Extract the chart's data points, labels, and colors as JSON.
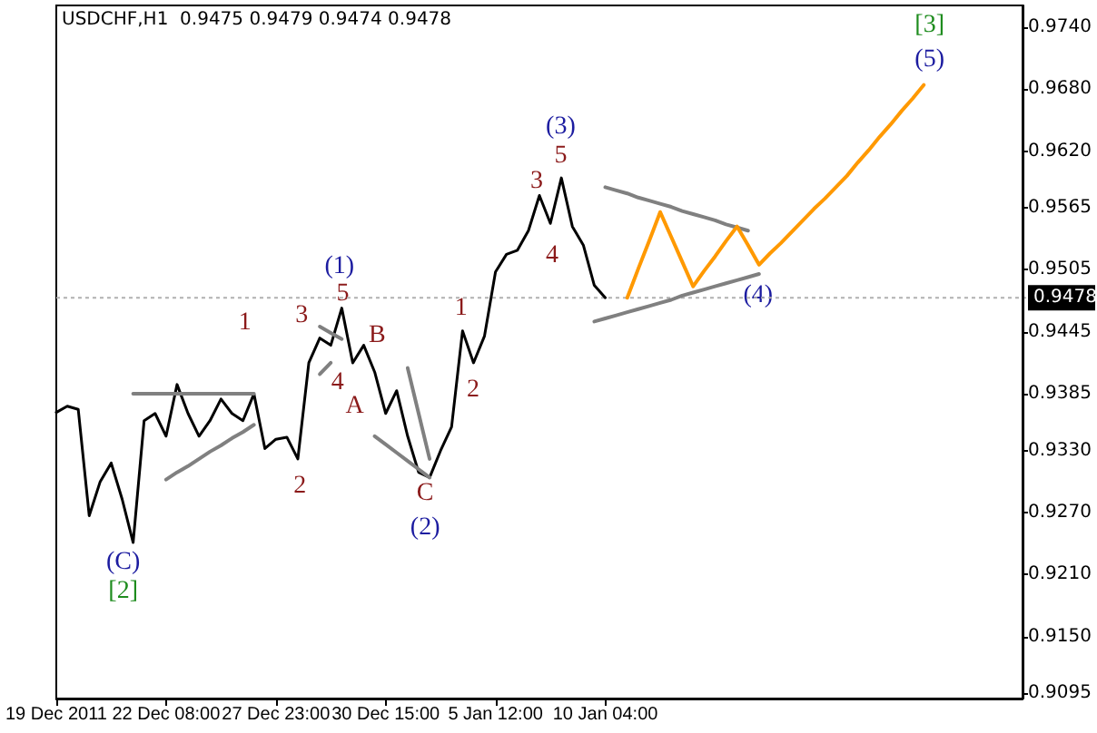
{
  "chart_data": {
    "type": "line",
    "title": "USDCHF,H1  0.9475 0.9479 0.9474 0.9478",
    "marker": "none",
    "grid": false,
    "categories": [
      "19 Dec 2011",
      null,
      null,
      null,
      null,
      null,
      null,
      null,
      null,
      null,
      "22 Dec 08:00",
      null,
      null,
      null,
      null,
      null,
      null,
      null,
      null,
      null,
      "27 Dec 23:00",
      null,
      null,
      null,
      null,
      null,
      null,
      null,
      null,
      null,
      "30 Dec 15:00",
      null,
      null,
      null,
      null,
      null,
      null,
      null,
      null,
      null,
      "5 Jan 12:00",
      null,
      null,
      null,
      null,
      null,
      null,
      null,
      null,
      null,
      "10 Jan 04:00",
      null,
      null,
      null,
      null,
      null,
      null,
      null,
      null,
      null,
      null,
      null,
      null,
      null,
      null,
      null,
      null,
      null,
      null,
      null,
      null,
      null,
      null,
      null,
      null,
      null,
      null,
      null,
      null,
      null,
      null,
      null,
      null,
      null,
      null,
      null,
      null,
      null,
      null
    ],
    "ylim": [
      0.909,
      0.9761
    ],
    "yticks": [
      {
        "value": 0.9095,
        "label": "0.9095"
      },
      {
        "value": 0.915,
        "label": "0.9150"
      },
      {
        "value": 0.921,
        "label": "0.9210"
      },
      {
        "value": 0.927,
        "label": "0.9270"
      },
      {
        "value": 0.933,
        "label": "0.9330"
      },
      {
        "value": 0.9385,
        "label": "0.9385"
      },
      {
        "value": 0.9445,
        "label": "0.9445"
      },
      {
        "value": 0.9505,
        "label": "0.9505"
      },
      {
        "value": 0.9565,
        "label": "0.9565"
      },
      {
        "value": 0.962,
        "label": "0.9620"
      },
      {
        "value": 0.968,
        "label": "0.9680"
      },
      {
        "value": 0.974,
        "label": "0.9740"
      }
    ],
    "ref_lines": [
      {
        "axis": "y",
        "value": 0.9478,
        "label": "0.9478"
      }
    ],
    "series": [
      {
        "color": "#000000",
        "values": [
          0.9367,
          0.9373,
          0.937,
          0.9267,
          0.93,
          0.9318,
          0.9283,
          0.9241,
          0.9359,
          0.9366,
          0.9344,
          0.9394,
          0.9366,
          0.9344,
          0.9359,
          0.938,
          0.9366,
          0.9359,
          0.9385,
          0.9332,
          0.9341,
          0.9343,
          0.9322,
          0.9415,
          0.9439,
          0.9432,
          0.9468,
          0.9415,
          0.9432,
          0.9406,
          0.9366,
          0.9388,
          0.9344,
          0.9309,
          0.9304,
          0.933,
          0.9353,
          0.9446,
          0.9415,
          0.9441,
          0.9503,
          0.952,
          0.9524,
          0.9543,
          0.9577,
          0.955,
          0.9594,
          0.9547,
          0.9529,
          0.949,
          0.9478,
          null,
          null,
          null,
          null,
          null,
          null,
          null,
          null,
          null,
          null,
          null,
          null,
          null,
          null,
          null,
          null,
          null,
          null,
          null,
          null,
          null,
          null,
          null,
          null,
          null,
          null,
          null,
          null,
          null,
          null,
          null,
          null,
          null,
          null,
          null,
          null,
          null,
          null
        ]
      },
      {
        "color": "#808080",
        "values": [
          null,
          null,
          null,
          null,
          null,
          null,
          null,
          0.9385,
          0.9385,
          0.9385,
          0.9385,
          0.9385,
          0.9385,
          0.9385,
          0.9385,
          0.9385,
          0.9385,
          0.9385,
          0.9385,
          null,
          null,
          null,
          null,
          null,
          null,
          null,
          null,
          null,
          null,
          null,
          null,
          null,
          null,
          null,
          null,
          null,
          null,
          null,
          null,
          null,
          null,
          null,
          null,
          null,
          null,
          null,
          null,
          null,
          null,
          null,
          null,
          null,
          null,
          null,
          null,
          null,
          null,
          null,
          null,
          null,
          null,
          null,
          null,
          null,
          null,
          null,
          null,
          null,
          null,
          null,
          null,
          null,
          null,
          null,
          null,
          null,
          null,
          null,
          null,
          null,
          null,
          null,
          null,
          null,
          null,
          null,
          null,
          null,
          null
        ]
      },
      {
        "color": "#808080",
        "values": [
          null,
          null,
          null,
          null,
          null,
          null,
          null,
          null,
          null,
          null,
          0.9302,
          0.9309,
          0.9315,
          0.9322,
          0.9329,
          0.9335,
          0.9342,
          0.9348,
          0.9355,
          null,
          null,
          null,
          null,
          null,
          null,
          null,
          null,
          null,
          null,
          null,
          null,
          null,
          null,
          null,
          null,
          null,
          null,
          null,
          null,
          null,
          null,
          null,
          null,
          null,
          null,
          null,
          null,
          null,
          null,
          null,
          null,
          null,
          null,
          null,
          null,
          null,
          null,
          null,
          null,
          null,
          null,
          null,
          null,
          null,
          null,
          null,
          null,
          null,
          null,
          null,
          null,
          null,
          null,
          null,
          null,
          null,
          null,
          null,
          null,
          null,
          null,
          null,
          null,
          null,
          null,
          null,
          null,
          null,
          null
        ]
      },
      {
        "color": "#7f7f7f",
        "values": [
          null,
          null,
          null,
          null,
          null,
          null,
          null,
          null,
          null,
          null,
          null,
          null,
          null,
          null,
          null,
          null,
          null,
          null,
          null,
          null,
          null,
          null,
          null,
          null,
          0.945,
          0.9444,
          0.9438,
          null,
          null,
          null,
          null,
          null,
          null,
          null,
          null,
          null,
          null,
          null,
          null,
          null,
          null,
          null,
          null,
          null,
          null,
          null,
          null,
          null,
          null,
          null,
          null,
          null,
          null,
          null,
          null,
          null,
          null,
          null,
          null,
          null,
          null,
          null,
          null,
          null,
          null,
          null,
          null,
          null,
          null,
          null,
          null,
          null,
          null,
          null,
          null,
          null,
          null,
          null,
          null,
          null,
          null,
          null,
          null,
          null,
          null,
          null,
          null,
          null,
          null
        ]
      },
      {
        "color": "#808080",
        "values": [
          null,
          null,
          null,
          null,
          null,
          null,
          null,
          null,
          null,
          null,
          null,
          null,
          null,
          null,
          null,
          null,
          null,
          null,
          null,
          null,
          null,
          null,
          null,
          null,
          0.9404,
          0.9415,
          null,
          null,
          null,
          null,
          null,
          null,
          null,
          null,
          null,
          null,
          null,
          null,
          null,
          null,
          null,
          null,
          null,
          null,
          null,
          null,
          null,
          null,
          null,
          null,
          null,
          null,
          null,
          null,
          null,
          null,
          null,
          null,
          null,
          null,
          null,
          null,
          null,
          null,
          null,
          null,
          null,
          null,
          null,
          null,
          null,
          null,
          null,
          null,
          null,
          null,
          null,
          null,
          null,
          null,
          null,
          null,
          null,
          null,
          null,
          null,
          null,
          null,
          null
        ]
      },
      {
        "color": "#808080",
        "values": [
          null,
          null,
          null,
          null,
          null,
          null,
          null,
          null,
          null,
          null,
          null,
          null,
          null,
          null,
          null,
          null,
          null,
          null,
          null,
          null,
          null,
          null,
          null,
          null,
          null,
          null,
          null,
          null,
          null,
          0.9344,
          0.9336,
          0.9328,
          0.932,
          0.9312,
          0.9304,
          null,
          null,
          null,
          null,
          null,
          null,
          null,
          null,
          null,
          null,
          null,
          null,
          null,
          null,
          null,
          null,
          null,
          null,
          null,
          null,
          null,
          null,
          null,
          null,
          null,
          null,
          null,
          null,
          null,
          null,
          null,
          null,
          null,
          null,
          null,
          null,
          null,
          null,
          null,
          null,
          null,
          null,
          null,
          null,
          null,
          null,
          null,
          null,
          null,
          null,
          null,
          null,
          null,
          null
        ]
      },
      {
        "color": "#808080",
        "values": [
          null,
          null,
          null,
          null,
          null,
          null,
          null,
          null,
          null,
          null,
          null,
          null,
          null,
          null,
          null,
          null,
          null,
          null,
          null,
          null,
          null,
          null,
          null,
          null,
          null,
          null,
          null,
          null,
          null,
          null,
          null,
          null,
          0.941,
          0.9366,
          0.9322,
          null,
          null,
          null,
          null,
          null,
          null,
          null,
          null,
          null,
          null,
          null,
          null,
          null,
          null,
          null,
          null,
          null,
          null,
          null,
          null,
          null,
          null,
          null,
          null,
          null,
          null,
          null,
          null,
          null,
          null,
          null,
          null,
          null,
          null,
          null,
          null,
          null,
          null,
          null,
          null,
          null,
          null,
          null,
          null,
          null,
          null,
          null,
          null,
          null,
          null,
          null,
          null,
          null,
          null
        ]
      },
      {
        "color": "#808080",
        "values": [
          null,
          null,
          null,
          null,
          null,
          null,
          null,
          null,
          null,
          null,
          null,
          null,
          null,
          null,
          null,
          null,
          null,
          null,
          null,
          null,
          null,
          null,
          null,
          null,
          null,
          null,
          null,
          null,
          null,
          null,
          null,
          null,
          null,
          null,
          null,
          null,
          null,
          null,
          null,
          null,
          null,
          null,
          null,
          null,
          null,
          null,
          null,
          null,
          null,
          0.9455,
          0.9458,
          0.9461,
          0.9464,
          0.9467,
          0.947,
          0.9473,
          0.9476,
          0.948,
          0.9483,
          0.9486,
          0.9489,
          0.9492,
          0.9495,
          0.9498,
          0.9501,
          null,
          null,
          null,
          null,
          null,
          null,
          null,
          null,
          null,
          null,
          null,
          null,
          null,
          null,
          null,
          null,
          null,
          null,
          null,
          null,
          null,
          null,
          null,
          null
        ]
      },
      {
        "color": "#808080",
        "values": [
          null,
          null,
          null,
          null,
          null,
          null,
          null,
          null,
          null,
          null,
          null,
          null,
          null,
          null,
          null,
          null,
          null,
          null,
          null,
          null,
          null,
          null,
          null,
          null,
          null,
          null,
          null,
          null,
          null,
          null,
          null,
          null,
          null,
          null,
          null,
          null,
          null,
          null,
          null,
          null,
          null,
          null,
          null,
          null,
          null,
          null,
          null,
          null,
          null,
          null,
          0.9585,
          0.9582,
          0.9579,
          0.9575,
          0.9572,
          0.9569,
          0.9566,
          0.9562,
          0.9559,
          0.9556,
          0.9553,
          0.9549,
          0.9546,
          0.9543,
          null,
          null,
          null,
          null,
          null,
          null,
          null,
          null,
          null,
          null,
          null,
          null,
          null,
          null,
          null,
          null,
          null,
          null,
          null,
          null,
          null,
          null,
          null,
          null,
          null
        ]
      },
      {
        "color": "#ff9900",
        "values": [
          null,
          null,
          null,
          null,
          null,
          null,
          null,
          null,
          null,
          null,
          null,
          null,
          null,
          null,
          null,
          null,
          null,
          null,
          null,
          null,
          null,
          null,
          null,
          null,
          null,
          null,
          null,
          null,
          null,
          null,
          null,
          null,
          null,
          null,
          null,
          null,
          null,
          null,
          null,
          null,
          null,
          null,
          null,
          null,
          null,
          null,
          null,
          null,
          null,
          null,
          null,
          null,
          0.9478,
          0.9506,
          0.9533,
          0.9561,
          0.9537,
          0.9513,
          0.9489,
          0.9504,
          0.9518,
          0.9533,
          0.9547,
          0.9529,
          0.951,
          0.9521,
          0.9531,
          0.9542,
          0.9553,
          0.9564,
          0.9574,
          0.9585,
          0.9596,
          0.9609,
          0.9621,
          0.9634,
          0.9646,
          0.9659,
          0.9671,
          0.9684,
          null,
          null,
          null,
          null,
          null,
          null,
          null,
          null,
          null
        ]
      }
    ],
    "annotations": [
      "(C)",
      "[2]",
      "1",
      "2",
      "3",
      "4",
      "(1)",
      "5",
      "A",
      "B",
      "C",
      "(2)",
      "1",
      "2",
      "3",
      "4",
      "(3)",
      "5",
      "(4)",
      "[3]",
      "(5)"
    ]
  }
}
